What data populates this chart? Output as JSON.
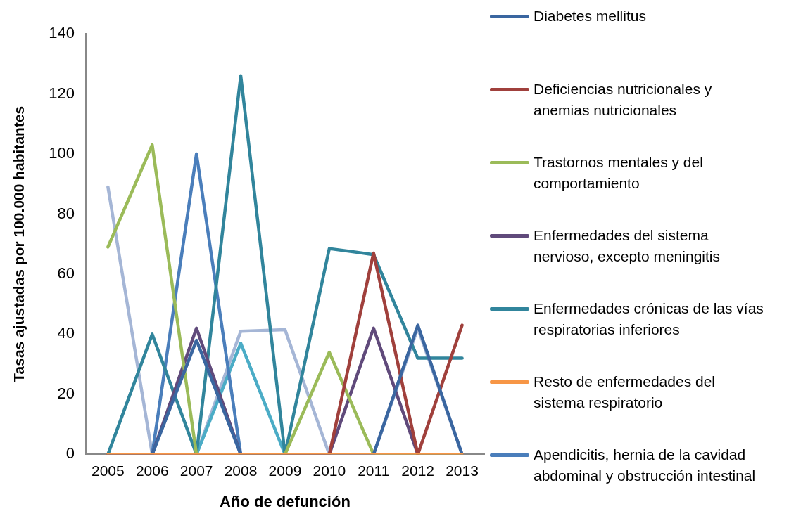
{
  "chart_data": {
    "type": "line",
    "xlabel": "Año de defunción",
    "ylabel": "Tasas ajustadas por 100.000 habitantes",
    "categories": [
      "2005",
      "2006",
      "2007",
      "2008",
      "2009",
      "2010",
      "2011",
      "2012",
      "2013"
    ],
    "ylim": [
      0,
      140
    ],
    "yticks": [
      0,
      20,
      40,
      60,
      80,
      100,
      120,
      140
    ],
    "grid": false,
    "legend": "right",
    "marker": "none",
    "line_style": "solid",
    "series": [
      {
        "name": "Diabetes mellitus",
        "color": "#3a66a0",
        "values": [
          0,
          0,
          38,
          0,
          0,
          0,
          0,
          43,
          0
        ]
      },
      {
        "name": "Deficiencias nutricionales y anemias nutricionales",
        "color": "#a0403c",
        "values": [
          0,
          0,
          0,
          0,
          0,
          0,
          67,
          0,
          43
        ]
      },
      {
        "name": "Trastornos mentales y del comportamiento",
        "color": "#9bbb59",
        "values": [
          69,
          103,
          0,
          0,
          0,
          34,
          0,
          0,
          0
        ]
      },
      {
        "name": "Enfermedades del sistema nervioso, excepto meningitis",
        "color": "#604a7b",
        "values": [
          0,
          0,
          42,
          0,
          0,
          0,
          42,
          0,
          0
        ]
      },
      {
        "name": "Enfermedades crónicas de las vías respiratorias inferiores",
        "color": "#31859c",
        "values": [
          0,
          40,
          0,
          126,
          0,
          68.5,
          66.5,
          32,
          32
        ]
      },
      {
        "name": "Resto de enfermedades del sistema respiratorio",
        "color": "#f79646",
        "values": [
          0,
          0,
          0,
          0,
          0,
          0,
          0,
          0,
          0
        ]
      },
      {
        "name": "Apendicitis, hernia de la cavidad abdominal y obstrucción intestinal",
        "color": "#4a7ebb",
        "values": [
          0,
          0,
          100,
          0,
          0,
          0,
          0,
          0,
          0
        ]
      },
      {
        "color": "#4bacc6",
        "values": [
          null,
          null,
          0,
          37,
          0,
          null,
          null,
          null,
          null
        ]
      },
      {
        "color": "#a5b6d6",
        "values": [
          89,
          0,
          0,
          41,
          41.5,
          0,
          0,
          42,
          0
        ]
      }
    ]
  }
}
